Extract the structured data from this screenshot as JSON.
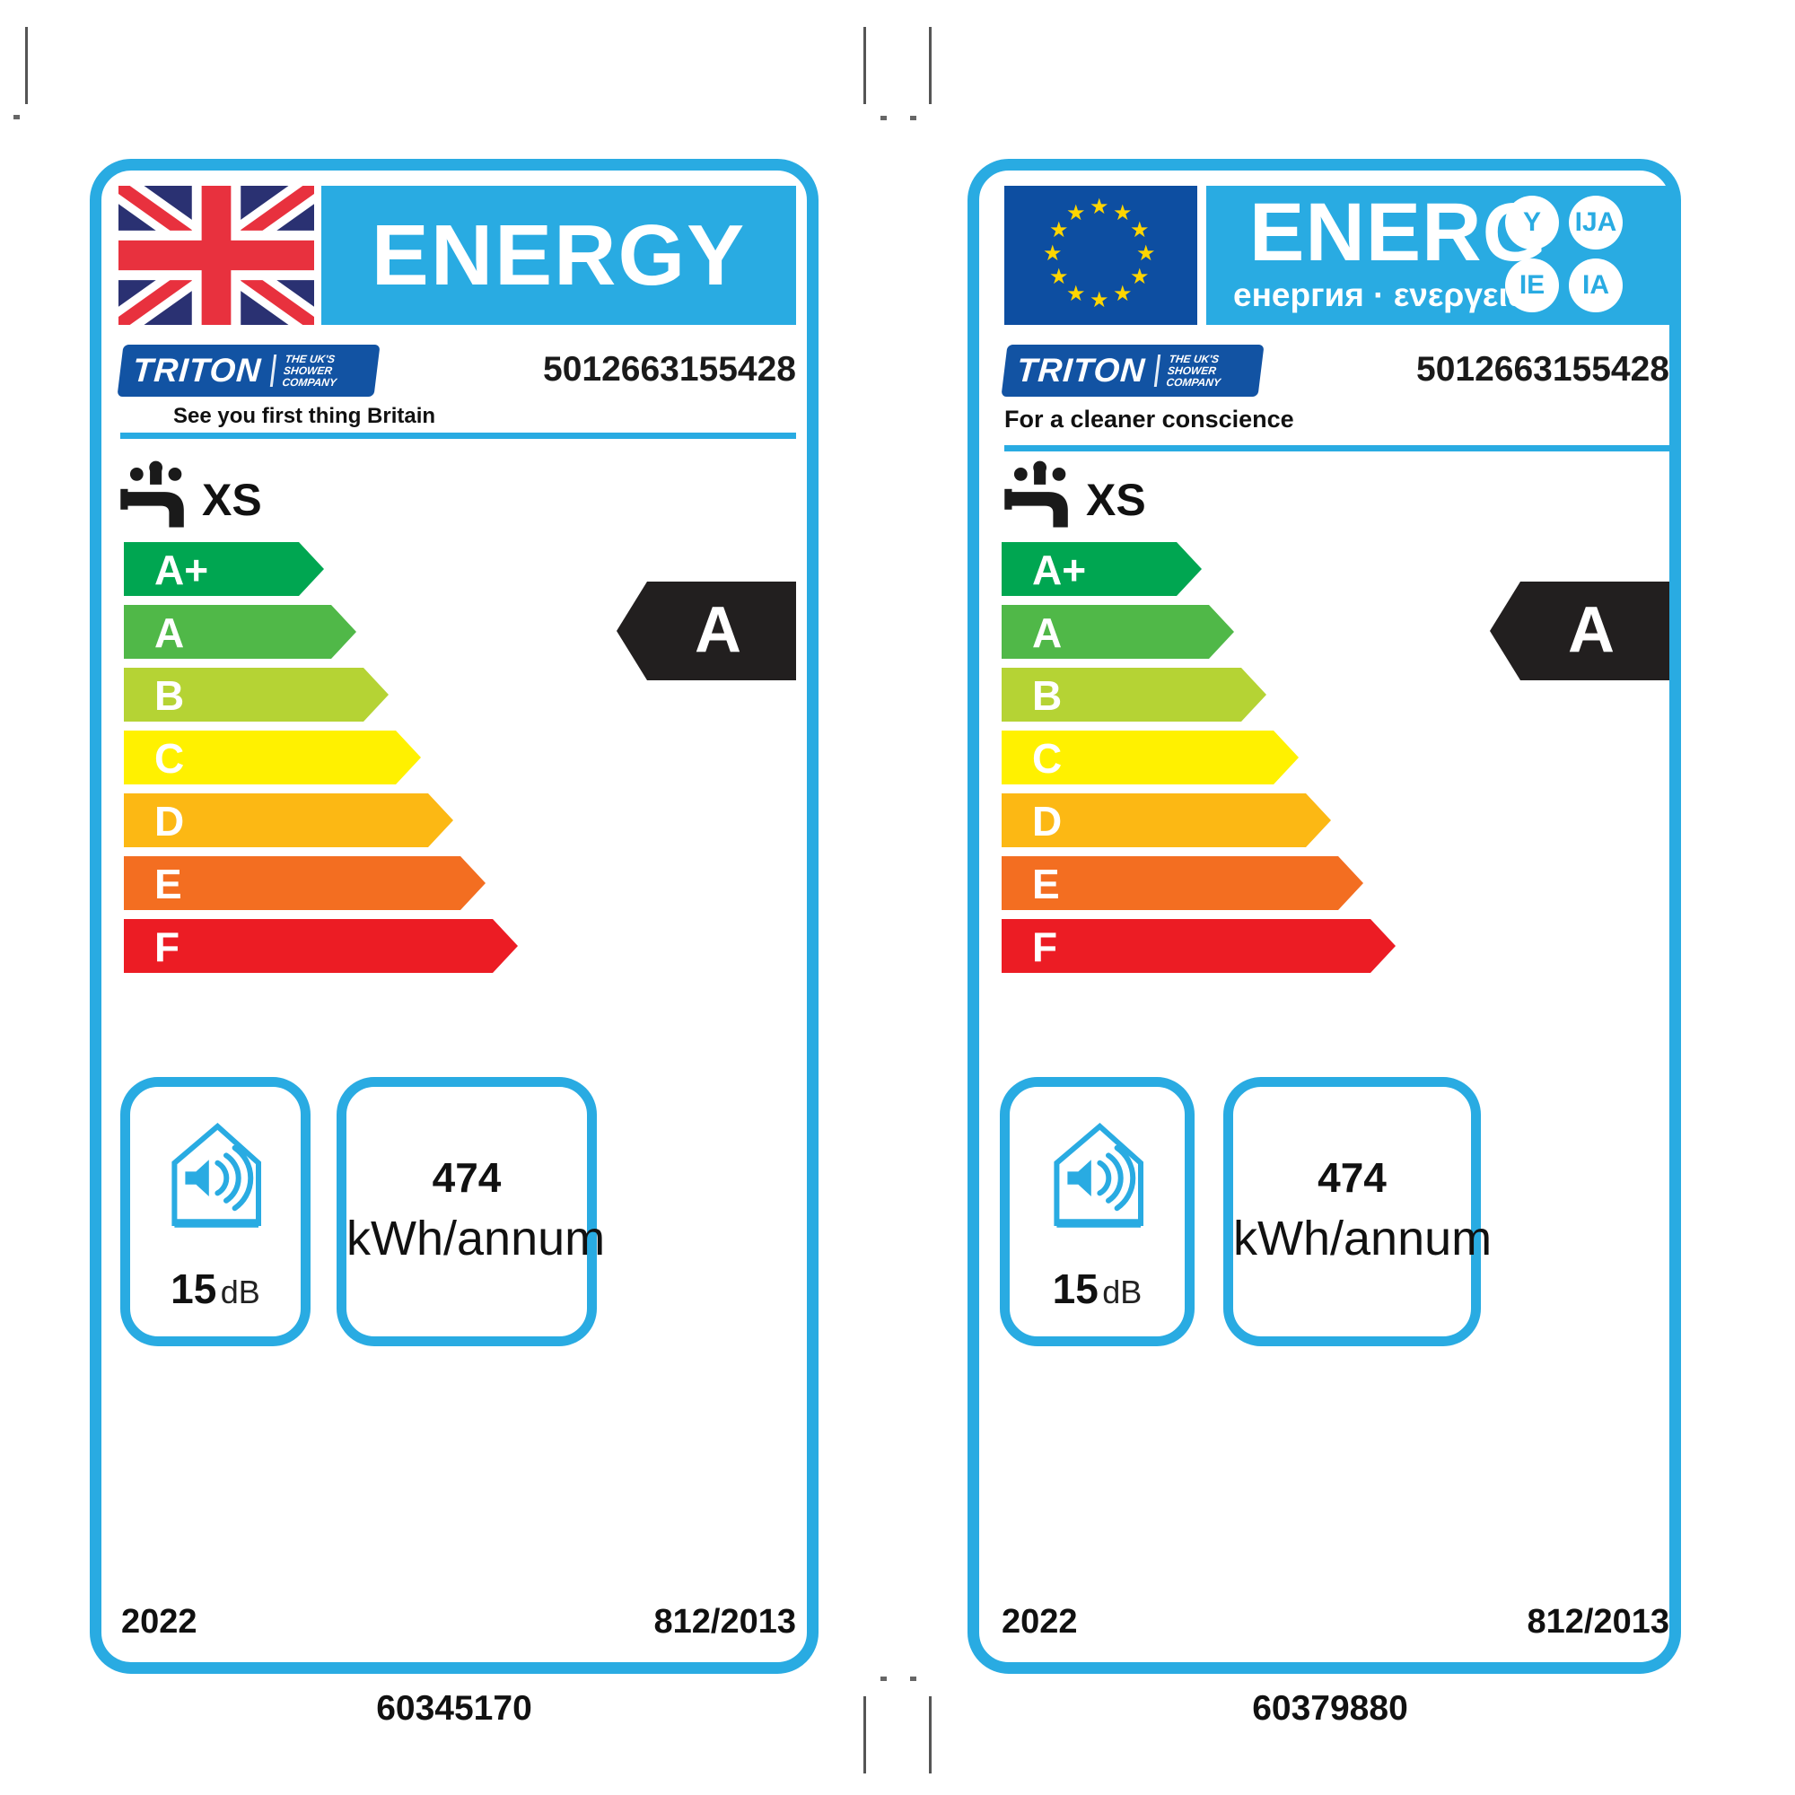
{
  "shared": {
    "accent_blue": "#29ABE2",
    "black_arrow_color": "#221F1F",
    "product_code": "5012663155428",
    "model": "XS",
    "noise": {
      "value": "15",
      "unit": "dB"
    },
    "consumption": {
      "value": "474",
      "unit": "kWh/annum"
    },
    "year": "2022",
    "regulation": "812/2013",
    "current_rating": "A",
    "rating_scale": [
      {
        "grade": "A+",
        "color": "#00A651"
      },
      {
        "grade": "A",
        "color": "#50B848"
      },
      {
        "grade": "B",
        "color": "#B5D334"
      },
      {
        "grade": "C",
        "color": "#FFF100"
      },
      {
        "grade": "D",
        "color": "#FCB814"
      },
      {
        "grade": "E",
        "color": "#F36E21"
      },
      {
        "grade": "F",
        "color": "#EC1C24"
      }
    ],
    "brand": {
      "name": "TRITON",
      "suffix_lines": [
        "THE UK'S",
        "SHOWER",
        "COMPANY"
      ],
      "navy": "#1253A3"
    }
  },
  "left_label": {
    "header_word": "ENERGY",
    "flag": {
      "type": "uk",
      "navy": "#2A3172",
      "red": "#E8313E"
    },
    "tagline": "See you first thing Britain",
    "footer_code": "60345170"
  },
  "right_label": {
    "header_word": "ENERG",
    "header_subtitle": "енергия · ενεργεια",
    "badges": [
      "Y",
      "IJA",
      "IE",
      "IA"
    ],
    "star_glyph": "★",
    "flag": {
      "type": "eu",
      "blue": "#0D4EA1",
      "star": "#FFD500"
    },
    "tagline": "For a cleaner conscience",
    "footer_code": "60379880"
  }
}
